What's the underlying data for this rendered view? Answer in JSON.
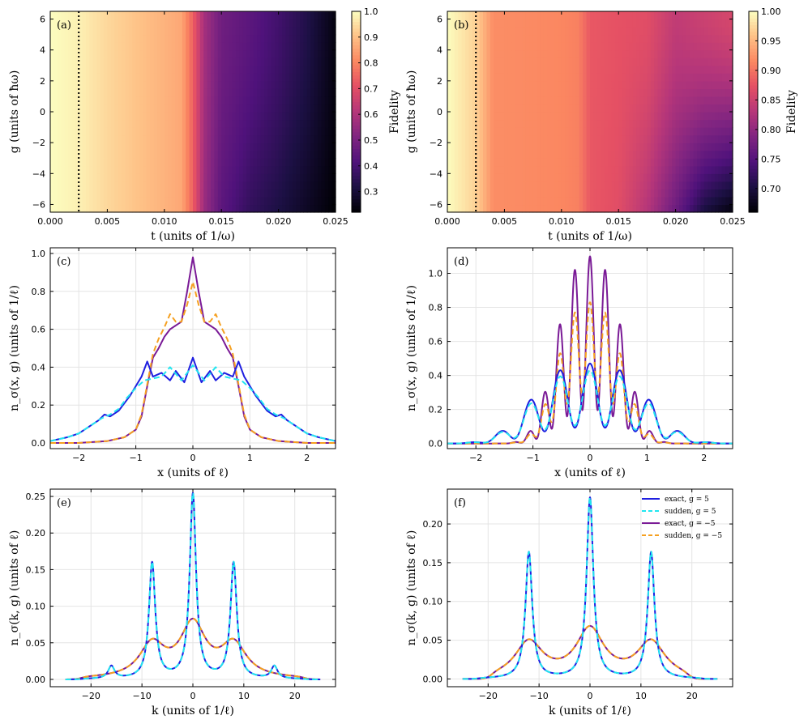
{
  "colors": {
    "exact_pos": "#1f1fe0",
    "sudden_pos": "#22e6f0",
    "exact_neg": "#7a1a96",
    "sudden_neg": "#f5a020",
    "grid": "#e4e4e4"
  },
  "chart_data": [
    {
      "id": "a",
      "type": "heatmap",
      "panel_label": "(a)",
      "xlabel": "t (units of 1/ω)",
      "ylabel": "g (units of ħω)",
      "colorbar_label": "Fidelity",
      "xlim": [
        0,
        0.025
      ],
      "ylim": [
        -6.5,
        6.5
      ],
      "clim": [
        0.22,
        1.0
      ],
      "xticks": [
        "0.000",
        "0.005",
        "0.010",
        "0.015",
        "0.020",
        "0.025"
      ],
      "yticks": [
        "−6",
        "−4",
        "−2",
        "0",
        "2",
        "4",
        "6"
      ],
      "cbar_ticks": [
        0.3,
        0.4,
        0.5,
        0.6,
        0.7,
        0.8,
        0.9,
        1.0
      ],
      "cbar_tick_labels": [
        "0.3",
        "0.4",
        "0.5",
        "0.6",
        "0.7",
        "0.8",
        "0.9",
        "1.0"
      ],
      "vline_t": 0.0025,
      "fidelity_profile_t": [
        0,
        0.0025,
        0.005,
        0.0075,
        0.01,
        0.0115,
        0.0125,
        0.0135,
        0.015,
        0.0175,
        0.02,
        0.0225,
        0.025
      ],
      "fidelity_profile_top": [
        1.0,
        0.98,
        0.94,
        0.91,
        0.88,
        0.86,
        0.74,
        0.58,
        0.48,
        0.44,
        0.39,
        0.33,
        0.24
      ],
      "fidelity_profile_bottom": [
        1.0,
        0.98,
        0.94,
        0.91,
        0.88,
        0.86,
        0.74,
        0.56,
        0.44,
        0.36,
        0.32,
        0.27,
        0.22
      ]
    },
    {
      "id": "b",
      "type": "heatmap",
      "panel_label": "(b)",
      "xlabel": "t (units of 1/ω)",
      "ylabel": "g (units of ħω)",
      "colorbar_label": "Fidelity",
      "xlim": [
        0,
        0.025
      ],
      "ylim": [
        -6.5,
        6.5
      ],
      "clim": [
        0.66,
        1.0
      ],
      "xticks": [
        "0.000",
        "0.005",
        "0.010",
        "0.015",
        "0.020",
        "0.025"
      ],
      "yticks": [
        "−6",
        "−4",
        "−2",
        "0",
        "2",
        "4",
        "6"
      ],
      "cbar_ticks": [
        0.7,
        0.75,
        0.8,
        0.85,
        0.9,
        0.95,
        1.0
      ],
      "cbar_tick_labels": [
        "0.70",
        "0.75",
        "0.80",
        "0.85",
        "0.90",
        "0.95",
        "1.00"
      ],
      "vline_t": 0.0025,
      "fidelity_profile_t": [
        0,
        0.0025,
        0.004,
        0.01,
        0.0115,
        0.0125,
        0.015,
        0.0175,
        0.02,
        0.0225,
        0.025
      ],
      "fidelity_profile_top": [
        1.0,
        0.97,
        0.92,
        0.915,
        0.91,
        0.88,
        0.875,
        0.87,
        0.84,
        0.85,
        0.86
      ],
      "fidelity_profile_bottom": [
        1.0,
        0.97,
        0.92,
        0.915,
        0.91,
        0.88,
        0.87,
        0.83,
        0.77,
        0.7,
        0.665
      ]
    },
    {
      "id": "c",
      "type": "line",
      "panel_label": "(c)",
      "xlabel": "x (units of ℓ)",
      "ylabel": "n_σ(x, g) (units of 1/ℓ)",
      "xlim": [
        -2.5,
        2.5
      ],
      "ylim": [
        -0.03,
        1.03
      ],
      "xticks": [
        -2,
        -1,
        0,
        1,
        2
      ],
      "xtick_labels": [
        "−2",
        "−1",
        "0",
        "1",
        "2"
      ],
      "yticks": [
        0,
        0.2,
        0.4,
        0.6,
        0.8,
        1.0
      ],
      "ytick_labels": [
        "0.0",
        "0.2",
        "0.4",
        "0.6",
        "0.8",
        "1.0"
      ],
      "series": [
        {
          "name": "exact, g = 5",
          "style": "solid",
          "color_key": "exact_pos",
          "x": [
            -2.5,
            -2.2,
            -2.0,
            -1.8,
            -1.65,
            -1.55,
            -1.45,
            -1.3,
            -1.2,
            -1.1,
            -1.0,
            -0.9,
            -0.8,
            -0.7,
            -0.55,
            -0.4,
            -0.3,
            -0.15,
            0,
            0.15,
            0.3,
            0.4,
            0.55,
            0.7,
            0.8,
            0.9,
            1.0,
            1.1,
            1.2,
            1.3,
            1.45,
            1.55,
            1.65,
            1.8,
            2.0,
            2.2,
            2.5
          ],
          "y": [
            0.01,
            0.03,
            0.05,
            0.09,
            0.12,
            0.15,
            0.14,
            0.17,
            0.21,
            0.25,
            0.3,
            0.35,
            0.43,
            0.35,
            0.37,
            0.33,
            0.38,
            0.32,
            0.45,
            0.32,
            0.38,
            0.33,
            0.37,
            0.35,
            0.43,
            0.35,
            0.3,
            0.25,
            0.21,
            0.17,
            0.14,
            0.15,
            0.12,
            0.09,
            0.05,
            0.03,
            0.01
          ]
        },
        {
          "name": "sudden, g = 5",
          "style": "dashed",
          "color_key": "sudden_pos",
          "x": [
            -2.5,
            -2.2,
            -2.0,
            -1.8,
            -1.6,
            -1.45,
            -1.3,
            -1.15,
            -1.0,
            -0.85,
            -0.7,
            -0.55,
            -0.4,
            -0.2,
            0,
            0.2,
            0.4,
            0.55,
            0.7,
            0.85,
            1.0,
            1.15,
            1.3,
            1.45,
            1.6,
            1.8,
            2.0,
            2.2,
            2.5
          ],
          "y": [
            0.01,
            0.03,
            0.05,
            0.09,
            0.13,
            0.15,
            0.18,
            0.24,
            0.29,
            0.33,
            0.34,
            0.35,
            0.4,
            0.33,
            0.41,
            0.33,
            0.4,
            0.35,
            0.34,
            0.33,
            0.29,
            0.24,
            0.18,
            0.15,
            0.13,
            0.09,
            0.05,
            0.03,
            0.01
          ]
        },
        {
          "name": "exact, g = −5",
          "style": "solid",
          "color_key": "exact_neg",
          "x": [
            -2.5,
            -2.0,
            -1.5,
            -1.2,
            -1.0,
            -0.9,
            -0.8,
            -0.7,
            -0.6,
            -0.5,
            -0.4,
            -0.3,
            -0.2,
            -0.1,
            0,
            0.1,
            0.2,
            0.3,
            0.4,
            0.5,
            0.6,
            0.7,
            0.8,
            0.9,
            1.0,
            1.2,
            1.5,
            2.0,
            2.5
          ],
          "y": [
            0.0,
            0.0,
            0.01,
            0.03,
            0.07,
            0.14,
            0.3,
            0.45,
            0.5,
            0.56,
            0.6,
            0.62,
            0.64,
            0.8,
            0.98,
            0.8,
            0.64,
            0.62,
            0.6,
            0.56,
            0.5,
            0.45,
            0.3,
            0.14,
            0.07,
            0.03,
            0.01,
            0.0,
            0.0
          ]
        },
        {
          "name": "sudden, g = −5",
          "style": "dashed",
          "color_key": "sudden_neg",
          "x": [
            -2.5,
            -2.0,
            -1.5,
            -1.2,
            -1.0,
            -0.9,
            -0.8,
            -0.7,
            -0.6,
            -0.5,
            -0.4,
            -0.3,
            -0.2,
            -0.1,
            0,
            0.1,
            0.2,
            0.3,
            0.4,
            0.5,
            0.6,
            0.7,
            0.8,
            0.9,
            1.0,
            1.2,
            1.5,
            2.0,
            2.5
          ],
          "y": [
            0.0,
            0.0,
            0.01,
            0.03,
            0.07,
            0.15,
            0.31,
            0.47,
            0.55,
            0.61,
            0.68,
            0.64,
            0.64,
            0.73,
            0.85,
            0.73,
            0.64,
            0.64,
            0.68,
            0.61,
            0.55,
            0.47,
            0.31,
            0.15,
            0.07,
            0.03,
            0.01,
            0.0,
            0.0
          ]
        }
      ]
    },
    {
      "id": "d",
      "type": "line",
      "panel_label": "(d)",
      "xlabel": "x (units of ℓ)",
      "ylabel": "n_σ(x, g) (units of 1/ℓ)",
      "xlim": [
        -2.5,
        2.5
      ],
      "ylim": [
        -0.03,
        1.15
      ],
      "xticks": [
        -2,
        -1,
        0,
        1,
        2
      ],
      "xtick_labels": [
        "−2",
        "−1",
        "0",
        "1",
        "2"
      ],
      "yticks": [
        0,
        0.2,
        0.4,
        0.6,
        0.8,
        1.0
      ],
      "ytick_labels": [
        "0.0",
        "0.2",
        "0.4",
        "0.6",
        "0.8",
        "1.0"
      ],
      "osc": {
        "exact_pos": {
          "amp": 0.47,
          "k": 11.9,
          "depth": 0.8,
          "w": 1.25,
          "p": 2.8
        },
        "sudden_pos": {
          "amp": 0.43,
          "k": 11.9,
          "depth": 0.75,
          "w": 1.25,
          "p": 2.8
        },
        "exact_neg": {
          "amp": 1.1,
          "k": 23.5,
          "depth": 0.82,
          "w": 0.72,
          "p": 2.6
        },
        "sudden_neg": {
          "amp": 0.83,
          "k": 23.5,
          "depth": 0.65,
          "w": 0.72,
          "p": 2.6
        }
      },
      "series_names": [
        "exact, g = 5",
        "sudden, g = 5",
        "exact, g = −5",
        "sudden, g = −5"
      ]
    },
    {
      "id": "e",
      "type": "line",
      "panel_label": "(e)",
      "xlabel": "k (units of 1/ℓ)",
      "ylabel": "n_σ(k, g) (units of ℓ)",
      "xlim": [
        -28,
        28
      ],
      "ylim": [
        -0.01,
        0.26
      ],
      "xticks": [
        -20,
        -10,
        0,
        10,
        20
      ],
      "xtick_labels": [
        "−20",
        "−10",
        "0",
        "10",
        "20"
      ],
      "yticks": [
        0,
        0.05,
        0.1,
        0.15,
        0.2,
        0.25
      ],
      "ytick_labels": [
        "0.00",
        "0.05",
        "0.10",
        "0.15",
        "0.20",
        "0.25"
      ],
      "peaks_pos": {
        "centers": [
          -16,
          -8,
          0,
          8,
          16
        ],
        "heights": [
          0.017,
          0.158,
          0.252,
          0.158,
          0.017
        ],
        "width": 0.75
      },
      "peaks_neg": {
        "centers": [
          -8,
          0,
          8
        ],
        "heights": [
          0.045,
          0.072,
          0.045
        ],
        "width": 3.0
      },
      "series_names": [
        "exact, g = 5",
        "sudden, g = 5",
        "exact, g = −5",
        "sudden, g = −5"
      ]
    },
    {
      "id": "f",
      "type": "line",
      "panel_label": "(f)",
      "xlabel": "k (units of 1/ℓ)",
      "ylabel": "n_σ(k, g) (units of ℓ)",
      "xlim": [
        -28,
        28
      ],
      "ylim": [
        -0.01,
        0.245
      ],
      "xticks": [
        -20,
        -10,
        0,
        10,
        20
      ],
      "xtick_labels": [
        "−20",
        "−10",
        "0",
        "10",
        "20"
      ],
      "yticks": [
        0,
        0.05,
        0.1,
        0.15,
        0.2
      ],
      "ytick_labels": [
        "0.00",
        "0.05",
        "0.10",
        "0.15",
        "0.20"
      ],
      "peaks_pos": {
        "centers": [
          -12,
          0,
          12
        ],
        "heights": [
          0.163,
          0.233,
          0.163
        ],
        "width": 0.8
      },
      "peaks_neg": {
        "centers": [
          -12,
          0,
          12
        ],
        "heights": [
          0.046,
          0.062,
          0.046
        ],
        "width": 3.3
      },
      "legend": {
        "position": "top-right",
        "entries": [
          "exact, g = 5",
          "sudden, g = 5",
          "exact, g = −5",
          "sudden, g = −5"
        ]
      },
      "series_names": [
        "exact, g = 5",
        "sudden, g = 5",
        "exact, g = −5",
        "sudden, g = −5"
      ]
    }
  ]
}
